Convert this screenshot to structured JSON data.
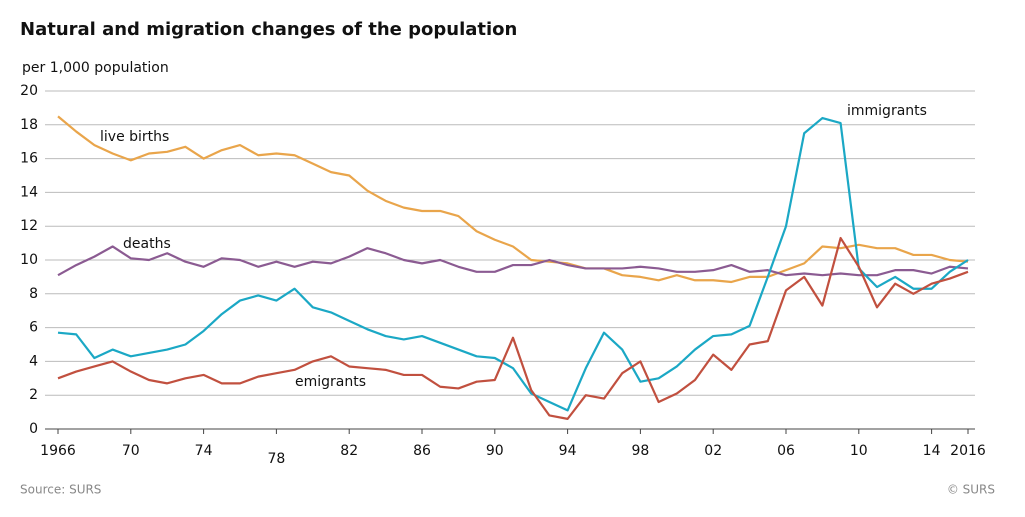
{
  "chart_data": {
    "type": "line",
    "title": "Natural and  migration changes of the population",
    "y_label": "per 1,000 population",
    "source": "Source: SURS",
    "credit": "© SURS",
    "x": [
      1966,
      1967,
      1968,
      1969,
      1970,
      1971,
      1972,
      1973,
      1974,
      1975,
      1976,
      1977,
      1978,
      1979,
      1980,
      1981,
      1982,
      1983,
      1984,
      1985,
      1986,
      1987,
      1988,
      1989,
      1990,
      1991,
      1992,
      1993,
      1994,
      1995,
      1996,
      1997,
      1998,
      1999,
      2000,
      2001,
      2002,
      2003,
      2004,
      2005,
      2006,
      2007,
      2008,
      2009,
      2010,
      2011,
      2012,
      2013,
      2014,
      2015,
      2016
    ],
    "xlim": [
      1966,
      2016
    ],
    "xticks": [
      1966,
      {
        "value": 1970,
        "label": "70"
      },
      {
        "value": 1974,
        "label": "74"
      },
      {
        "value": 1978,
        "label": "78"
      },
      {
        "value": 1982,
        "label": "82"
      },
      {
        "value": 1986,
        "label": "86"
      },
      {
        "value": 1990,
        "label": "90"
      },
      {
        "value": 1994,
        "label": "94"
      },
      {
        "value": 1998,
        "label": "98"
      },
      {
        "value": 2002,
        "label": "02"
      },
      {
        "value": 2006,
        "label": "06"
      },
      {
        "value": 2010,
        "label": "10"
      },
      {
        "value": 2014,
        "label": "14"
      },
      2016
    ],
    "ylim": [
      0,
      20
    ],
    "yticks": [
      0,
      2,
      4,
      6,
      8,
      10,
      12,
      14,
      16,
      18,
      20
    ],
    "grid": true,
    "series": [
      {
        "name": "live births",
        "color": "#e9a54b",
        "values": [
          18.5,
          17.6,
          16.8,
          16.3,
          15.9,
          16.3,
          16.4,
          16.7,
          16.0,
          16.5,
          16.8,
          16.2,
          16.3,
          16.2,
          15.7,
          15.2,
          15.0,
          14.1,
          13.5,
          13.1,
          12.9,
          12.9,
          12.6,
          11.7,
          11.2,
          10.8,
          10.0,
          9.9,
          9.8,
          9.5,
          9.5,
          9.1,
          9.0,
          8.8,
          9.1,
          8.8,
          8.8,
          8.7,
          9.0,
          9.0,
          9.4,
          9.8,
          10.8,
          10.7,
          10.9,
          10.7,
          10.7,
          10.3,
          10.3,
          10.0,
          9.9
        ]
      },
      {
        "name": "deaths",
        "color": "#8b5b92",
        "values": [
          9.1,
          9.7,
          10.2,
          10.8,
          10.1,
          10.0,
          10.4,
          9.9,
          9.6,
          10.1,
          10.0,
          9.6,
          9.9,
          9.6,
          9.9,
          9.8,
          10.2,
          10.7,
          10.4,
          10.0,
          9.8,
          10.0,
          9.6,
          9.3,
          9.3,
          9.7,
          9.7,
          10.0,
          9.7,
          9.5,
          9.5,
          9.5,
          9.6,
          9.5,
          9.3,
          9.3,
          9.4,
          9.7,
          9.3,
          9.4,
          9.1,
          9.2,
          9.1,
          9.2,
          9.1,
          9.1,
          9.4,
          9.4,
          9.2,
          9.6,
          9.5
        ]
      },
      {
        "name": "immigrants",
        "color": "#1ba8c5",
        "values": [
          5.7,
          5.6,
          4.2,
          4.7,
          4.3,
          4.5,
          4.7,
          5.0,
          5.8,
          6.8,
          7.6,
          7.9,
          7.6,
          8.3,
          7.2,
          6.9,
          6.4,
          5.9,
          5.5,
          5.3,
          5.5,
          5.1,
          4.7,
          4.3,
          4.2,
          3.6,
          2.1,
          1.6,
          1.1,
          3.6,
          5.7,
          4.7,
          2.8,
          3.0,
          3.7,
          4.7,
          5.5,
          5.6,
          6.1,
          9.0,
          12.0,
          17.5,
          18.4,
          18.1,
          9.5,
          8.4,
          9.0,
          8.3,
          8.3,
          9.3,
          10.0
        ]
      },
      {
        "name": "emigrants",
        "color": "#c1503f",
        "values": [
          3.0,
          3.4,
          3.7,
          4.0,
          3.4,
          2.9,
          2.7,
          3.0,
          3.2,
          2.7,
          2.7,
          3.1,
          3.3,
          3.5,
          4.0,
          4.3,
          3.7,
          3.6,
          3.5,
          3.2,
          3.2,
          2.5,
          2.4,
          2.8,
          2.9,
          5.4,
          2.3,
          0.8,
          0.6,
          2.0,
          1.8,
          3.3,
          4.0,
          1.6,
          2.1,
          2.9,
          4.4,
          3.5,
          5.0,
          5.2,
          8.2,
          9.0,
          7.3,
          11.3,
          9.6,
          7.2,
          8.6,
          8.0,
          8.6,
          8.9,
          9.3
        ]
      }
    ]
  }
}
